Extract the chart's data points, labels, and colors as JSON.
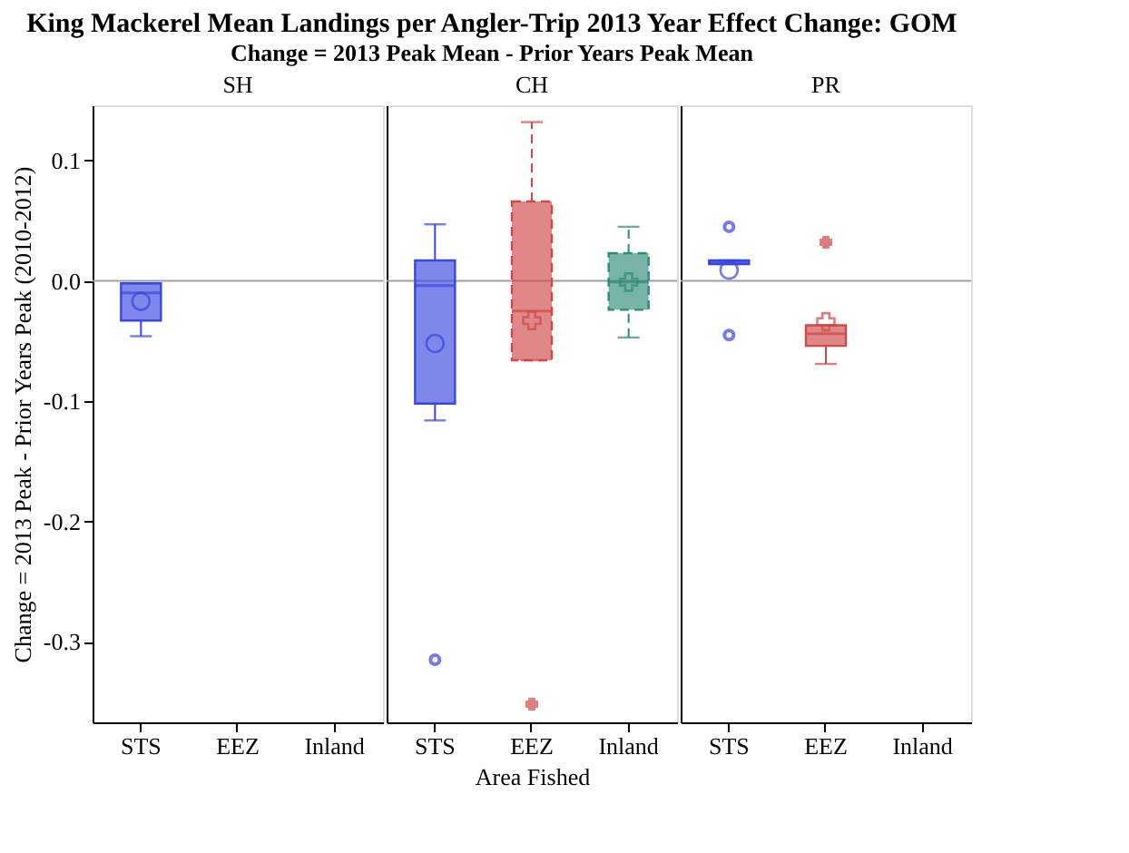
{
  "chart_data": [
    {
      "type": "box",
      "title": "King Mackerel Mean Landings per Angler-Trip 2013 Year Effect Change: GOM",
      "subtitle": "Change = 2013 Peak Mean - Prior Years Peak Mean",
      "annotations": [
        "SH"
      ],
      "ylabel": "Change = 2013 Peak - Prior Years Peak (2010-2012)",
      "categories": [
        "STS",
        "EEZ",
        "Inland"
      ],
      "ylim": [
        -0.367,
        0.146
      ],
      "yticks": [
        {
          "value": 0.1,
          "label": "0.1"
        },
        {
          "value": 0.0,
          "label": "0.0"
        },
        {
          "value": -0.1,
          "label": "-0.1"
        },
        {
          "value": -0.2,
          "label": "-0.2"
        },
        {
          "value": -0.3,
          "label": "-0.3"
        }
      ],
      "ref_lines": [
        {
          "axis": "y",
          "value": 0,
          "color": "#a0a0a0"
        }
      ],
      "grid": false,
      "series": [
        {
          "color": "#3a46e0",
          "marker": "circle",
          "line_style": "solid",
          "boxes": [
            {
              "low": -0.046,
              "q1": -0.033,
              "median": -0.01,
              "q3": -0.002,
              "high": -0.002,
              "mean": -0.017
            },
            null,
            null
          ]
        }
      ]
    },
    {
      "type": "box",
      "annotations": [
        "CH"
      ],
      "xlabel": "Area Fished",
      "categories": [
        "STS",
        "EEZ",
        "Inland"
      ],
      "ylim": [
        -0.367,
        0.146
      ],
      "tick_labels": "x",
      "ref_lines": [
        {
          "axis": "y",
          "value": 0,
          "color": "#a0a0a0"
        }
      ],
      "grid": false,
      "series": [
        {
          "color": "#3a46e0",
          "marker": "circle",
          "line_style": "solid",
          "boxes": [
            {
              "low": -0.116,
              "q1": -0.102,
              "median": -0.004,
              "q3": 0.017,
              "high": 0.047,
              "mean": -0.052,
              "outliers": [
                -0.315
              ]
            },
            null,
            null
          ]
        },
        {
          "color": "#d04848",
          "marker": "cross",
          "line_style": "dashed",
          "boxes": [
            null,
            {
              "low": -0.066,
              "q1": -0.066,
              "median": -0.025,
              "q3": 0.066,
              "high": 0.132,
              "mean": -0.033,
              "outliers": [
                -0.352
              ]
            },
            null
          ]
        },
        {
          "color": "#2f8a78",
          "marker": "cross",
          "line_style": "dashed",
          "boxes": [
            null,
            null,
            {
              "low": -0.047,
              "q1": -0.024,
              "median": -0.001,
              "q3": 0.023,
              "high": 0.045,
              "mean": -0.001
            }
          ]
        }
      ]
    },
    {
      "type": "box",
      "annotations": [
        "PR"
      ],
      "categories": [
        "STS",
        "EEZ",
        "Inland"
      ],
      "ylim": [
        -0.367,
        0.146
      ],
      "tick_labels": "x",
      "ref_lines": [
        {
          "axis": "y",
          "value": 0,
          "color": "#a0a0a0"
        }
      ],
      "grid": false,
      "series": [
        {
          "color": "#3a46e0",
          "marker": "circle",
          "line_style": "solid",
          "boxes": [
            {
              "low": 0.014,
              "q1": 0.014,
              "median": 0.016,
              "q3": 0.017,
              "high": 0.017,
              "mean": 0.009,
              "outliers": [
                0.045,
                -0.045
              ]
            },
            null,
            null
          ]
        },
        {
          "color": "#d04848",
          "marker": "cross",
          "line_style": "solid",
          "boxes": [
            null,
            {
              "low": -0.069,
              "q1": -0.054,
              "median": -0.044,
              "q3": -0.037,
              "high": -0.037,
              "mean": -0.034,
              "outliers": [
                0.032
              ]
            },
            null
          ]
        }
      ]
    }
  ]
}
